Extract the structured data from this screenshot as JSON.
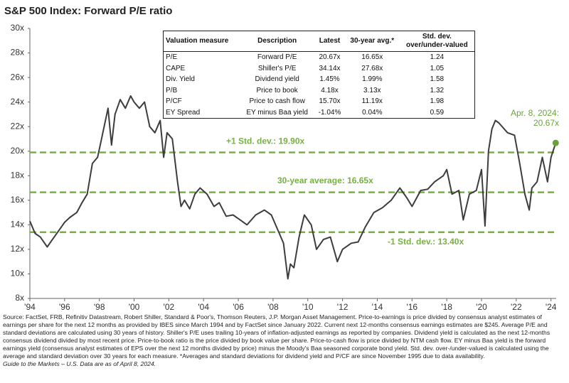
{
  "chart_data": {
    "type": "line",
    "title": "S&P 500 Index: Forward P/E ratio",
    "color": "#3d3d3d",
    "x": [
      1994.0,
      1994.3,
      1994.6,
      1995.0,
      1995.3,
      1995.7,
      1996.0,
      1996.3,
      1996.7,
      1997.0,
      1997.3,
      1997.6,
      1997.9,
      1998.2,
      1998.5,
      1998.7,
      1998.9,
      1999.2,
      1999.5,
      1999.8,
      2000.0,
      2000.3,
      2000.6,
      2000.9,
      2001.2,
      2001.5,
      2001.7,
      2001.9,
      2002.2,
      2002.5,
      2002.7,
      2002.9,
      2003.2,
      2003.5,
      2003.8,
      2004.2,
      2004.6,
      2004.9,
      2005.3,
      2005.7,
      2006.0,
      2006.5,
      2007.0,
      2007.5,
      2007.9,
      2008.3,
      2008.6,
      2008.85,
      2009.0,
      2009.2,
      2009.5,
      2009.8,
      2010.2,
      2010.5,
      2010.9,
      2011.3,
      2011.7,
      2012.0,
      2012.5,
      2012.9,
      2013.3,
      2013.8,
      2014.3,
      2014.8,
      2015.3,
      2015.7,
      2016.0,
      2016.5,
      2016.9,
      2017.3,
      2017.8,
      2018.0,
      2018.3,
      2018.7,
      2018.95,
      2019.3,
      2019.7,
      2020.0,
      2020.2,
      2020.4,
      2020.6,
      2020.8,
      2021.0,
      2021.5,
      2021.9,
      2022.2,
      2022.5,
      2022.75,
      2022.9,
      2023.2,
      2023.5,
      2023.8,
      2024.0,
      2024.27
    ],
    "values": [
      14.3,
      13.3,
      13.0,
      12.2,
      12.8,
      13.6,
      14.2,
      14.6,
      15.0,
      15.8,
      16.5,
      19.0,
      19.5,
      21.5,
      23.5,
      20.5,
      23.0,
      24.2,
      23.5,
      24.5,
      24.0,
      23.5,
      24.0,
      22.0,
      21.5,
      22.5,
      19.5,
      21.5,
      21.0,
      17.5,
      15.5,
      16.0,
      15.3,
      16.5,
      17.0,
      16.5,
      15.5,
      15.8,
      14.7,
      14.8,
      14.5,
      14.0,
      14.8,
      15.2,
      14.8,
      13.5,
      12.5,
      9.6,
      10.8,
      10.5,
      13.0,
      14.8,
      14.0,
      12.0,
      12.8,
      13.0,
      11.0,
      12.0,
      12.5,
      12.6,
      13.8,
      15.0,
      15.4,
      16.0,
      17.0,
      16.2,
      15.5,
      16.8,
      16.9,
      17.5,
      18.0,
      18.5,
      16.5,
      16.8,
      14.4,
      16.5,
      16.8,
      18.5,
      13.9,
      20.0,
      21.8,
      22.5,
      22.3,
      21.5,
      21.3,
      19.0,
      16.5,
      15.2,
      17.0,
      17.5,
      19.5,
      17.5,
      19.5,
      20.67
    ],
    "marker_color": "#6aa23a",
    "reference_color": "#77b043",
    "reference_lines": [
      {
        "value": 19.9,
        "label": "+1 Std. dev.: 19.90x"
      },
      {
        "value": 16.65,
        "label": "30-year average: 16.65x"
      },
      {
        "value": 13.4,
        "label": "-1 Std. dev.: 13.40x"
      }
    ],
    "annotation": [
      "Apr. 8, 2024:",
      "20.67x"
    ],
    "xlim": [
      1994,
      2024.3
    ],
    "ylim": [
      8,
      30
    ],
    "xticks": [
      {
        "value": 1994,
        "label": "'94"
      },
      {
        "value": 1996,
        "label": "'96"
      },
      {
        "value": 1998,
        "label": "'98"
      },
      {
        "value": 2000,
        "label": "'00"
      },
      {
        "value": 2002,
        "label": "'02"
      },
      {
        "value": 2004,
        "label": "'04"
      },
      {
        "value": 2006,
        "label": "'06"
      },
      {
        "value": 2008,
        "label": "'08"
      },
      {
        "value": 2010,
        "label": "'10"
      },
      {
        "value": 2012,
        "label": "'12"
      },
      {
        "value": 2014,
        "label": "'14"
      },
      {
        "value": 2016,
        "label": "'16"
      },
      {
        "value": 2018,
        "label": "'18"
      },
      {
        "value": 2020,
        "label": "'20"
      },
      {
        "value": 2022,
        "label": "'22"
      },
      {
        "value": 2024,
        "label": "'24"
      }
    ],
    "yticks": [
      {
        "value": 8,
        "label": "8x"
      },
      {
        "value": 10,
        "label": "10x"
      },
      {
        "value": 12,
        "label": "12x"
      },
      {
        "value": 14,
        "label": "14x"
      },
      {
        "value": 16,
        "label": "16x"
      },
      {
        "value": 18,
        "label": "18x"
      },
      {
        "value": 20,
        "label": "20x"
      },
      {
        "value": 22,
        "label": "22x"
      },
      {
        "value": 24,
        "label": "24x"
      },
      {
        "value": 26,
        "label": "26x"
      },
      {
        "value": 28,
        "label": "28x"
      },
      {
        "value": 30,
        "label": "30x"
      }
    ],
    "table": {
      "columns": [
        "Valuation measure",
        "Description",
        "Latest",
        "30-year avg.*",
        "Std. dev.\nover/under-valued"
      ],
      "rows": [
        [
          "P/E",
          "Forward P/E",
          "20.67x",
          "16.65x",
          "1.24"
        ],
        [
          "CAPE",
          "Shiller's P/E",
          "34.14x",
          "27.68x",
          "1.05"
        ],
        [
          "Div. Yield",
          "Dividend yield",
          "1.45%",
          "1.99%",
          "1.58"
        ],
        [
          "P/B",
          "Price to book",
          "4.18x",
          "3.13x",
          "1.32"
        ],
        [
          "P/CF",
          "Price to cash flow",
          "15.70x",
          "11.19x",
          "1.98"
        ],
        [
          "EY Spread",
          "EY minus Baa yield",
          "-1.04%",
          "0.04%",
          "0.59"
        ]
      ]
    },
    "source": "Source: FactSet, FRB, Refinitiv Datastream, Robert Shiller, Standard & Poor's, Thomson Reuters, J.P. Morgan Asset Management. Price-to-earnings is price divided by consensus analyst estimates of earnings per share for the next 12 months as provided by IBES since March 1994 and by FactSet since January 2022. Current next 12-months consensus earnings estimates are $245. Average P/E and standard deviations are calculated using 30 years of history. Shiller's P/E uses trailing 10-years of inflation-adjusted earnings as reported by companies. Dividend yield is calculated as the next 12-months consensus dividend divided by most recent price. Price-to-book ratio is the price divided by book value per share. Price-to-cash flow is price divided by NTM cash flow. EY minus Baa yield is the forward earnings yield (consensus analyst estimates of EPS over the next 12 months divided by price) minus the Moody's Baa seasoned corporate bond yield. Std. dev. over-/under-valued is calculated using the average and standard deviation over 30 years for each measure. *Averages and standard deviations for dividend yield and P/CF are since November 1995 due to data availability.",
    "footnote": "Guide to the Markets – U.S. Data are as of April 8, 2024."
  }
}
